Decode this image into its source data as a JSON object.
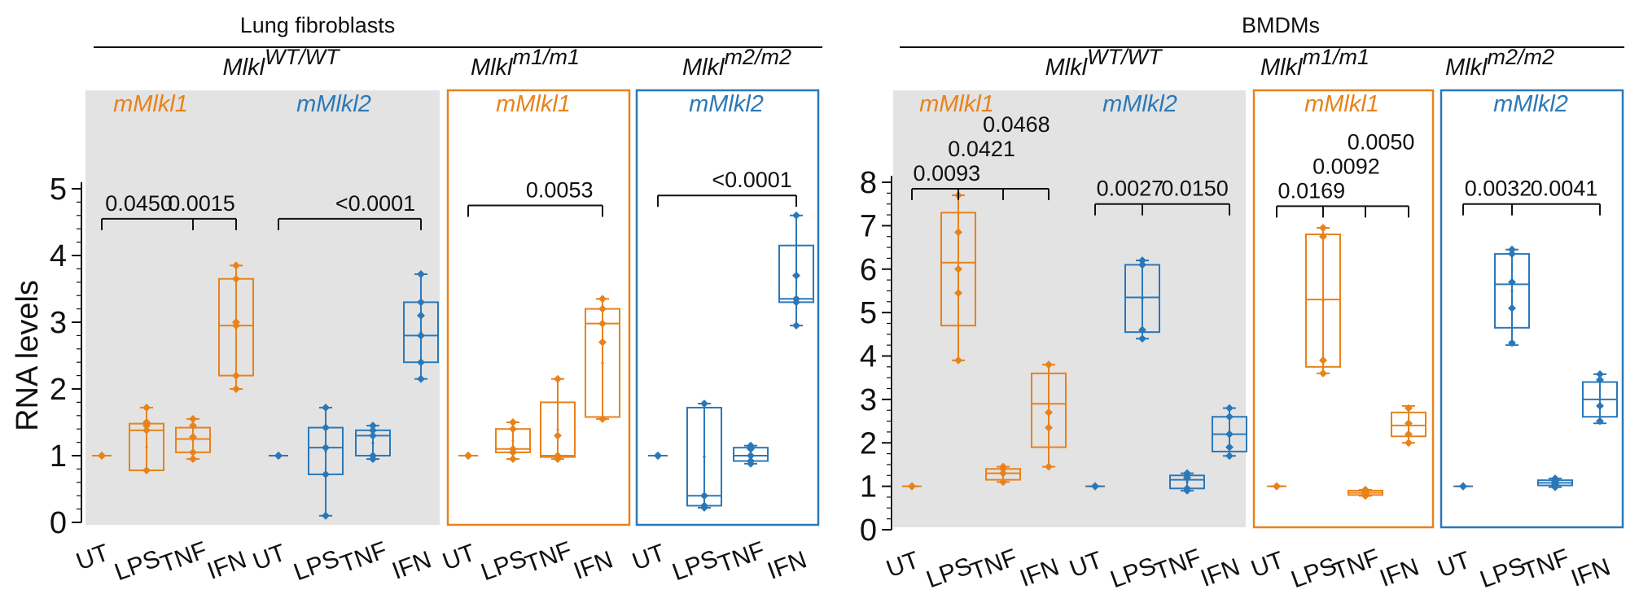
{
  "colors": {
    "orange": "#E8821A",
    "blue": "#2B78B8",
    "shade": "#E3E3E3",
    "ink": "#111111"
  },
  "ylabel": "RNA levels",
  "chart_data": [
    {
      "type": "box",
      "title": "Lung fibroblasts",
      "ylabel": "RNA levels",
      "ylim": [
        0,
        5
      ],
      "yticks": [
        "0",
        "1",
        "2",
        "3",
        "4",
        "5"
      ],
      "categories": [
        "UT",
        "LPS",
        "TNF",
        "IFN"
      ],
      "groups": [
        {
          "genotype": "MlklWT/WT",
          "genotype_base": "Mlkl",
          "genotype_sup": "WT/WT",
          "panels": [
            {
              "label": "mMlkl1",
              "color": "orange",
              "style": "shaded",
              "genotype_first": true,
              "boxes": [
                {
                  "category": "UT",
                  "min": 1.0,
                  "q1": 1.0,
                  "median": 1.0,
                  "q3": 1.0,
                  "max": 1.0,
                  "points": [
                    1.0,
                    1.0,
                    1.0
                  ]
                },
                {
                  "category": "LPS",
                  "min": 0.78,
                  "q1": 0.78,
                  "median": 1.38,
                  "q3": 1.48,
                  "max": 1.72,
                  "points": [
                    0.78,
                    1.38,
                    1.45,
                    1.5,
                    1.72
                  ]
                },
                {
                  "category": "TNF",
                  "min": 0.95,
                  "q1": 1.05,
                  "median": 1.25,
                  "q3": 1.42,
                  "max": 1.55,
                  "points": [
                    0.95,
                    1.05,
                    1.28,
                    1.45,
                    1.55
                  ]
                },
                {
                  "category": "IFN",
                  "min": 2.0,
                  "q1": 2.2,
                  "median": 2.95,
                  "q3": 3.65,
                  "max": 3.85,
                  "points": [
                    2.0,
                    2.2,
                    2.95,
                    3.0,
                    3.65,
                    3.85
                  ]
                }
              ],
              "comparisons": [
                {
                  "label": "0.0450",
                  "from": "UT",
                  "to": "TNF",
                  "y": 4.55
                },
                {
                  "label": "0.0015",
                  "from": "UT",
                  "to": "IFN",
                  "y": 4.55
                }
              ]
            },
            {
              "label": "mMlkl2",
              "color": "blue",
              "style": "shaded",
              "genotype_first": false,
              "boxes": [
                {
                  "category": "UT",
                  "min": 1.0,
                  "q1": 1.0,
                  "median": 1.0,
                  "q3": 1.0,
                  "max": 1.0,
                  "points": [
                    1.0,
                    1.0,
                    1.0
                  ]
                },
                {
                  "category": "LPS",
                  "min": 0.1,
                  "q1": 0.72,
                  "median": 1.12,
                  "q3": 1.42,
                  "max": 1.72,
                  "points": [
                    0.1,
                    0.72,
                    1.12,
                    1.42,
                    1.72
                  ]
                },
                {
                  "category": "TNF",
                  "min": 0.95,
                  "q1": 1.0,
                  "median": 1.3,
                  "q3": 1.38,
                  "max": 1.45,
                  "points": [
                    0.95,
                    1.0,
                    1.3,
                    1.38,
                    1.45
                  ]
                },
                {
                  "category": "IFN",
                  "min": 2.15,
                  "q1": 2.4,
                  "median": 2.8,
                  "q3": 3.3,
                  "max": 3.72,
                  "points": [
                    2.15,
                    2.4,
                    2.8,
                    3.1,
                    3.3,
                    3.72
                  ]
                }
              ],
              "comparisons": [
                {
                  "label": "<0.0001",
                  "from": "UT",
                  "to": "IFN",
                  "y": 4.55
                }
              ]
            }
          ]
        },
        {
          "genotype": "Mlklm1/m1",
          "genotype_base": "Mlkl",
          "genotype_sup": "m1/m1",
          "panels": [
            {
              "label": "mMlkl1",
              "color": "orange",
              "style": "boxed",
              "genotype_first": true,
              "boxes": [
                {
                  "category": "UT",
                  "min": 1.0,
                  "q1": 1.0,
                  "median": 1.0,
                  "q3": 1.0,
                  "max": 1.0,
                  "points": [
                    1.0,
                    1.0,
                    1.0
                  ]
                },
                {
                  "category": "LPS",
                  "min": 0.95,
                  "q1": 1.05,
                  "median": 1.1,
                  "q3": 1.4,
                  "max": 1.5,
                  "points": [
                    0.95,
                    1.05,
                    1.1,
                    1.4,
                    1.5
                  ]
                },
                {
                  "category": "TNF",
                  "min": 0.95,
                  "q1": 0.98,
                  "median": 1.0,
                  "q3": 1.8,
                  "max": 2.15,
                  "points": [
                    0.95,
                    1.0,
                    1.3,
                    2.15
                  ]
                },
                {
                  "category": "IFN",
                  "min": 1.55,
                  "q1": 1.58,
                  "median": 2.98,
                  "q3": 3.2,
                  "max": 3.35,
                  "points": [
                    1.55,
                    2.7,
                    2.98,
                    3.2,
                    3.35
                  ]
                }
              ],
              "comparisons": [
                {
                  "label": "0.0053",
                  "from": "UT",
                  "to": "IFN",
                  "y": 4.75
                }
              ]
            }
          ]
        },
        {
          "genotype": "Mlklm2/m2",
          "genotype_base": "Mlkl",
          "genotype_sup": "m2/m2",
          "panels": [
            {
              "label": "mMlkl2",
              "color": "blue",
              "style": "boxed",
              "genotype_first": true,
              "boxes": [
                {
                  "category": "UT",
                  "min": 1.0,
                  "q1": 1.0,
                  "median": 1.0,
                  "q3": 1.0,
                  "max": 1.0,
                  "points": [
                    1.0,
                    1.0,
                    1.0
                  ]
                },
                {
                  "category": "LPS",
                  "min": 0.22,
                  "q1": 0.25,
                  "median": 0.4,
                  "q3": 1.72,
                  "max": 1.78,
                  "points": [
                    0.22,
                    0.25,
                    0.4,
                    1.78
                  ]
                },
                {
                  "category": "TNF",
                  "min": 0.88,
                  "q1": 0.92,
                  "median": 1.0,
                  "q3": 1.12,
                  "max": 1.15,
                  "points": [
                    0.88,
                    0.92,
                    1.0,
                    1.1,
                    1.15
                  ]
                },
                {
                  "category": "IFN",
                  "min": 2.95,
                  "q1": 3.3,
                  "median": 3.35,
                  "q3": 4.15,
                  "max": 4.6,
                  "points": [
                    2.95,
                    3.3,
                    3.35,
                    3.7,
                    4.6
                  ]
                }
              ],
              "comparisons": [
                {
                  "label": "<0.0001",
                  "from": "UT",
                  "to": "IFN",
                  "y": 4.9
                }
              ]
            }
          ]
        }
      ]
    },
    {
      "type": "box",
      "title": "BMDMs",
      "ylabel": "",
      "ylim": [
        0,
        8
      ],
      "yticks": [
        "0",
        "1",
        "2",
        "3",
        "4",
        "5",
        "6",
        "7",
        "8"
      ],
      "categories": [
        "UT",
        "LPS",
        "TNF",
        "IFN"
      ],
      "groups": [
        {
          "genotype": "MlklWT/WT",
          "genotype_base": "Mlkl",
          "genotype_sup": "WT/WT",
          "panels": [
            {
              "label": "mMlkl1",
              "color": "orange",
              "style": "shaded",
              "genotype_first": true,
              "boxes": [
                {
                  "category": "UT",
                  "min": 1.0,
                  "q1": 1.0,
                  "median": 1.0,
                  "q3": 1.0,
                  "max": 1.0,
                  "points": [
                    1.0,
                    1.0,
                    1.0
                  ]
                },
                {
                  "category": "LPS",
                  "min": 3.9,
                  "q1": 4.7,
                  "median": 6.15,
                  "q3": 7.3,
                  "max": 7.7,
                  "points": [
                    3.9,
                    5.45,
                    6.0,
                    6.85,
                    7.7
                  ]
                },
                {
                  "category": "TNF",
                  "min": 1.1,
                  "q1": 1.15,
                  "median": 1.3,
                  "q3": 1.4,
                  "max": 1.45,
                  "points": [
                    1.1,
                    1.3,
                    1.4,
                    1.45
                  ]
                },
                {
                  "category": "IFN",
                  "min": 1.45,
                  "q1": 1.9,
                  "median": 2.9,
                  "q3": 3.6,
                  "max": 3.8,
                  "points": [
                    1.45,
                    2.35,
                    2.7,
                    3.8
                  ]
                }
              ],
              "comparisons": [
                {
                  "label": "0.0093",
                  "from": "UT",
                  "to": "LPS",
                  "y": 7.85
                },
                {
                  "label": "0.0421",
                  "from": "UT",
                  "to": "TNF",
                  "y": 7.85
                },
                {
                  "label": "0.0468",
                  "from": "UT",
                  "to": "IFN",
                  "y": 7.85
                }
              ]
            },
            {
              "label": "mMlkl2",
              "color": "blue",
              "style": "shaded",
              "genotype_first": false,
              "boxes": [
                {
                  "category": "UT",
                  "min": 1.0,
                  "q1": 1.0,
                  "median": 1.0,
                  "q3": 1.0,
                  "max": 1.0,
                  "points": [
                    1.0,
                    1.0,
                    1.0
                  ]
                },
                {
                  "category": "LPS",
                  "min": 4.4,
                  "q1": 4.55,
                  "median": 5.35,
                  "q3": 6.1,
                  "max": 6.2,
                  "points": [
                    4.4,
                    4.6,
                    6.1,
                    6.2
                  ]
                },
                {
                  "category": "TNF",
                  "min": 0.9,
                  "q1": 0.95,
                  "median": 1.15,
                  "q3": 1.25,
                  "max": 1.3,
                  "points": [
                    0.9,
                    0.95,
                    1.2,
                    1.3
                  ]
                },
                {
                  "category": "IFN",
                  "min": 1.7,
                  "q1": 1.8,
                  "median": 2.2,
                  "q3": 2.6,
                  "max": 2.8,
                  "points": [
                    1.7,
                    1.9,
                    2.2,
                    2.6,
                    2.8
                  ]
                }
              ],
              "comparisons": [
                {
                  "label": "0.0027",
                  "from": "UT",
                  "to": "LPS",
                  "y": 7.5
                },
                {
                  "label": "0.0150",
                  "from": "UT",
                  "to": "IFN",
                  "y": 7.5
                }
              ]
            }
          ]
        },
        {
          "genotype": "Mlklm1/m1",
          "genotype_base": "Mlkl",
          "genotype_sup": "m1/m1",
          "panels": [
            {
              "label": "mMlkl1",
              "color": "orange",
              "style": "boxed",
              "genotype_first": true,
              "boxes": [
                {
                  "category": "UT",
                  "min": 1.0,
                  "q1": 1.0,
                  "median": 1.0,
                  "q3": 1.0,
                  "max": 1.0,
                  "points": [
                    1.0,
                    1.0,
                    1.0
                  ]
                },
                {
                  "category": "LPS",
                  "min": 3.6,
                  "q1": 3.75,
                  "median": 5.3,
                  "q3": 6.8,
                  "max": 6.95,
                  "points": [
                    3.6,
                    3.9,
                    6.75,
                    6.95
                  ]
                },
                {
                  "category": "TNF",
                  "min": 0.78,
                  "q1": 0.8,
                  "median": 0.85,
                  "q3": 0.9,
                  "max": 0.92,
                  "points": [
                    0.78,
                    0.82,
                    0.88,
                    0.92
                  ]
                },
                {
                  "category": "IFN",
                  "min": 2.0,
                  "q1": 2.15,
                  "median": 2.4,
                  "q3": 2.7,
                  "max": 2.85,
                  "points": [
                    2.0,
                    2.2,
                    2.45,
                    2.8
                  ]
                }
              ],
              "comparisons": [
                {
                  "label": "0.0169",
                  "from": "UT",
                  "to": "LPS",
                  "y": 7.45
                },
                {
                  "label": "0.0092",
                  "from": "UT",
                  "to": "TNF",
                  "y": 7.45
                },
                {
                  "label": "0.0050",
                  "from": "UT",
                  "to": "IFN",
                  "y": 7.45
                }
              ]
            }
          ]
        },
        {
          "genotype": "Mlklm2/m2",
          "genotype_base": "Mlkl",
          "genotype_sup": "m2/m2",
          "panels": [
            {
              "label": "mMlkl2",
              "color": "blue",
              "style": "boxed",
              "genotype_first": true,
              "boxes": [
                {
                  "category": "UT",
                  "min": 1.0,
                  "q1": 1.0,
                  "median": 1.0,
                  "q3": 1.0,
                  "max": 1.0,
                  "points": [
                    1.0,
                    1.0,
                    1.0
                  ]
                },
                {
                  "category": "LPS",
                  "min": 4.25,
                  "q1": 4.65,
                  "median": 5.65,
                  "q3": 6.35,
                  "max": 6.45,
                  "points": [
                    4.3,
                    5.1,
                    5.7,
                    6.35,
                    6.45
                  ]
                },
                {
                  "category": "TNF",
                  "min": 0.98,
                  "q1": 1.02,
                  "median": 1.08,
                  "q3": 1.14,
                  "max": 1.18,
                  "points": [
                    0.98,
                    1.05,
                    1.12,
                    1.18
                  ]
                },
                {
                  "category": "IFN",
                  "min": 2.45,
                  "q1": 2.6,
                  "median": 3.0,
                  "q3": 3.4,
                  "max": 3.58,
                  "points": [
                    2.5,
                    2.85,
                    3.45,
                    3.58
                  ]
                }
              ],
              "comparisons": [
                {
                  "label": "0.0032",
                  "from": "UT",
                  "to": "LPS",
                  "y": 7.5
                },
                {
                  "label": "0.0041",
                  "from": "UT",
                  "to": "IFN",
                  "y": 7.5
                }
              ]
            }
          ]
        }
      ]
    }
  ]
}
